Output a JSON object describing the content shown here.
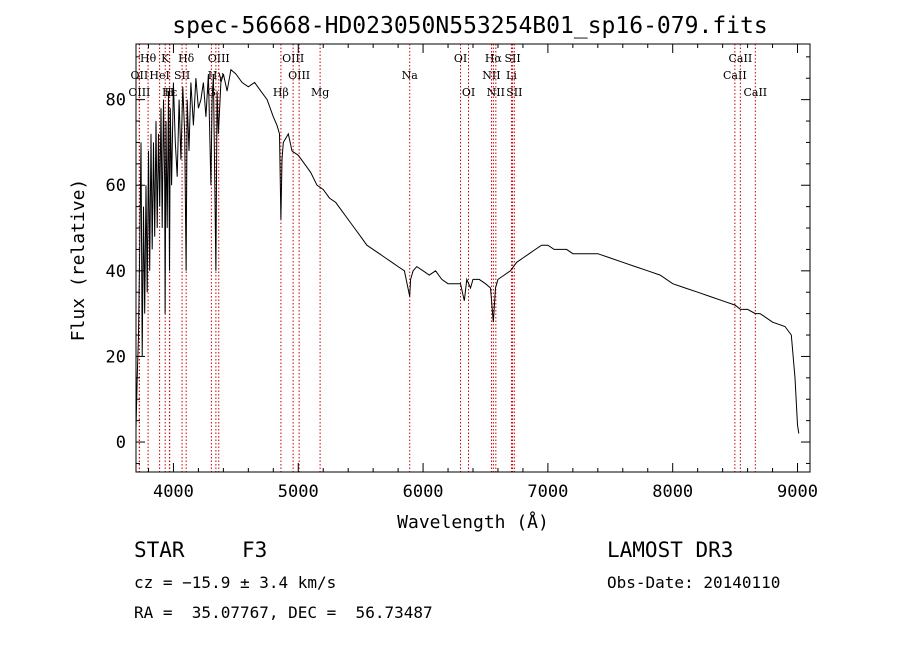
{
  "chart_data": {
    "type": "line",
    "title": "spec-56668-HD023050N553254B01_sp16-079.fits",
    "xlabel": "Wavelength (Å)",
    "ylabel": "Flux (relative)",
    "xlim": [
      3700,
      9100
    ],
    "ylim": [
      -7,
      93
    ],
    "xticks": [
      4000,
      5000,
      6000,
      7000,
      8000,
      9000
    ],
    "yticks": [
      0,
      20,
      40,
      60,
      80
    ],
    "series": [
      {
        "name": "spectrum",
        "x": [
          3700,
          3710,
          3720,
          3730,
          3740,
          3750,
          3760,
          3770,
          3780,
          3790,
          3800,
          3810,
          3820,
          3830,
          3840,
          3850,
          3860,
          3870,
          3880,
          3890,
          3900,
          3910,
          3920,
          3930,
          3933,
          3940,
          3950,
          3960,
          3968,
          3975,
          3985,
          4000,
          4015,
          4030,
          4045,
          4060,
          4075,
          4090,
          4101,
          4110,
          4125,
          4140,
          4160,
          4180,
          4200,
          4220,
          4240,
          4260,
          4280,
          4300,
          4310,
          4320,
          4340,
          4350,
          4360,
          4380,
          4400,
          4430,
          4460,
          4500,
          4550,
          4600,
          4650,
          4700,
          4750,
          4800,
          4830,
          4850,
          4861,
          4870,
          4880,
          4900,
          4920,
          4950,
          5000,
          5050,
          5100,
          5150,
          5200,
          5250,
          5300,
          5350,
          5400,
          5450,
          5500,
          5550,
          5600,
          5650,
          5700,
          5750,
          5800,
          5850,
          5893,
          5900,
          5920,
          5950,
          6000,
          6050,
          6100,
          6150,
          6200,
          6250,
          6300,
          6330,
          6350,
          6380,
          6400,
          6450,
          6500,
          6540,
          6563,
          6580,
          6600,
          6650,
          6700,
          6750,
          6800,
          6850,
          6900,
          6950,
          7000,
          7050,
          7100,
          7150,
          7200,
          7300,
          7400,
          7500,
          7600,
          7700,
          7800,
          7900,
          8000,
          8100,
          8200,
          8300,
          8400,
          8500,
          8542,
          8600,
          8662,
          8700,
          8800,
          8900,
          8950,
          8980,
          9000,
          9010
        ],
        "y": [
          3,
          15,
          25,
          45,
          70,
          20,
          55,
          30,
          60,
          35,
          68,
          40,
          72,
          45,
          70,
          48,
          75,
          50,
          72,
          55,
          78,
          50,
          80,
          60,
          30,
          75,
          50,
          82,
          40,
          78,
          60,
          84,
          70,
          62,
          80,
          66,
          83,
          72,
          40,
          80,
          68,
          84,
          74,
          85,
          78,
          80,
          84,
          76,
          86,
          60,
          80,
          86,
          40,
          82,
          72,
          84,
          86,
          82,
          87,
          86,
          84,
          83,
          84,
          82,
          80,
          76,
          74,
          72,
          52,
          66,
          70,
          71,
          72,
          68,
          67,
          65,
          63,
          60,
          59,
          57,
          56,
          54,
          52,
          50,
          48,
          46,
          45,
          44,
          43,
          42,
          41,
          40,
          34,
          38,
          40,
          41,
          40,
          39,
          40,
          38,
          37,
          37,
          37,
          33,
          38,
          36,
          38,
          38,
          37,
          36,
          28,
          36,
          38,
          39,
          40,
          42,
          43,
          44,
          45,
          46,
          46,
          45,
          45,
          45,
          44,
          44,
          44,
          43,
          42,
          41,
          40,
          39,
          37,
          36,
          35,
          34,
          33,
          32,
          31,
          31,
          30,
          30,
          28,
          27,
          25,
          15,
          4,
          2
        ]
      }
    ],
    "lines": [
      {
        "name": "Hθ",
        "x": 3797,
        "row": 1
      },
      {
        "name": "K",
        "x": 3934,
        "row": 1
      },
      {
        "name": "Hδ",
        "x": 4102,
        "row": 1
      },
      {
        "name": "OIII",
        "x": 4363,
        "row": 1
      },
      {
        "name": "OIII",
        "x": 4959,
        "row": 1
      },
      {
        "name": "OI",
        "x": 6300,
        "row": 1
      },
      {
        "name": "Hα",
        "x": 6563,
        "row": 1
      },
      {
        "name": "SII",
        "x": 6717,
        "row": 1
      },
      {
        "name": "CaII",
        "x": 8542,
        "row": 1
      },
      {
        "name": "OII",
        "x": 3727,
        "row": 2
      },
      {
        "name": "HeI",
        "x": 3889,
        "row": 2
      },
      {
        "name": "SII",
        "x": 4069,
        "row": 2
      },
      {
        "name": "Hγ",
        "x": 4340,
        "row": 2
      },
      {
        "name": "OIII",
        "x": 5007,
        "row": 2
      },
      {
        "name": "Na",
        "x": 5893,
        "row": 2
      },
      {
        "name": "NII",
        "x": 6548,
        "row": 2
      },
      {
        "name": "Li",
        "x": 6708,
        "row": 2
      },
      {
        "name": "CaII",
        "x": 8498,
        "row": 2
      },
      {
        "name": "OIII",
        "x": 3727,
        "row": 3
      },
      {
        "name": "Hε",
        "x": 3970,
        "row": 3
      },
      {
        "name": "H",
        "x": 3968,
        "row": 3
      },
      {
        "name": "G",
        "x": 4304,
        "row": 3
      },
      {
        "name": "Hβ",
        "x": 4861,
        "row": 3
      },
      {
        "name": "Mg",
        "x": 5175,
        "row": 3
      },
      {
        "name": "OI",
        "x": 6364,
        "row": 3
      },
      {
        "name": "NII",
        "x": 6583,
        "row": 3
      },
      {
        "name": "SII",
        "x": 6731,
        "row": 3
      },
      {
        "name": "CaII",
        "x": 8662,
        "row": 3
      }
    ]
  },
  "info": {
    "class": "STAR",
    "subclass": "F3",
    "survey": "LAMOST DR3",
    "cz": "cz = −15.9 ± 3.4 km/s",
    "obs_date": "Obs-Date: 20140110",
    "radec": "RA =  35.07767, DEC =  56.73487"
  },
  "colors": {
    "ink": "#000000",
    "line_marker": "#cc0000"
  }
}
